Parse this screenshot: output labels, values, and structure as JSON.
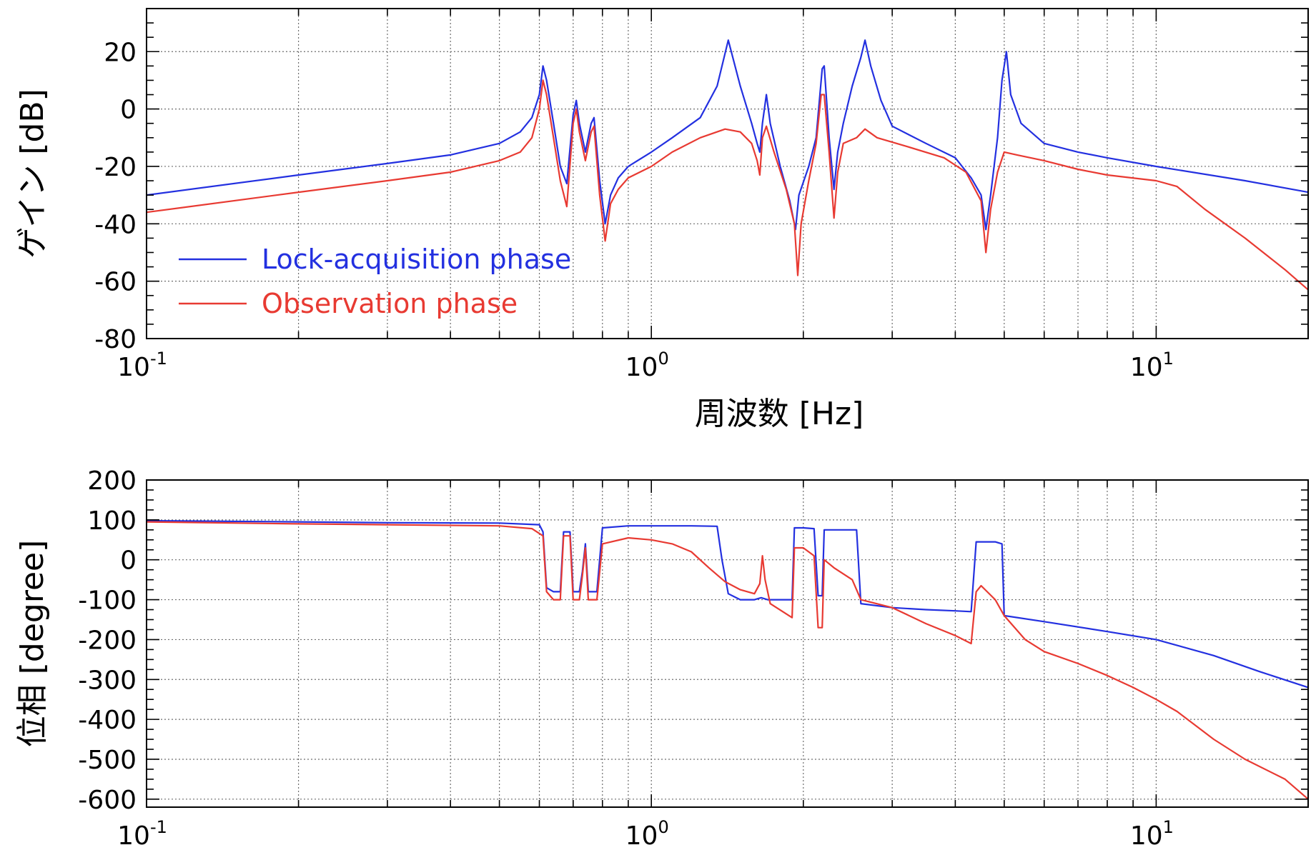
{
  "chart_data": [
    {
      "type": "line",
      "id": "gain",
      "title": "",
      "xlabel": "",
      "ylabel": "ゲイン [dB]",
      "x_scale": "log",
      "xlim": [
        0.1,
        20
      ],
      "ylim": [
        -80,
        35
      ],
      "y_ticks": [
        20,
        0,
        -20,
        -40,
        -60,
        -80
      ],
      "y_tick_labels": [
        "20",
        "0",
        "-20",
        "-40",
        "-60",
        "-80"
      ],
      "x_ticks": [
        0.1,
        1,
        10
      ],
      "x_tick_labels": [
        {
          "base": "10",
          "exp": "-1"
        },
        {
          "base": "10",
          "exp": "0"
        },
        {
          "base": "10",
          "exp": "1"
        }
      ],
      "grid": true,
      "legend_position": "lower-left",
      "series": [
        {
          "name": "Lock-acquisition phase",
          "color": "#2330e0",
          "points": [
            [
              0.1,
              -30
            ],
            [
              0.2,
              -23
            ],
            [
              0.3,
              -19
            ],
            [
              0.4,
              -16
            ],
            [
              0.5,
              -12
            ],
            [
              0.55,
              -8
            ],
            [
              0.58,
              -3
            ],
            [
              0.6,
              5
            ],
            [
              0.61,
              15
            ],
            [
              0.62,
              10
            ],
            [
              0.64,
              -5
            ],
            [
              0.66,
              -20
            ],
            [
              0.68,
              -26
            ],
            [
              0.7,
              -2
            ],
            [
              0.71,
              3
            ],
            [
              0.72,
              -5
            ],
            [
              0.74,
              -15
            ],
            [
              0.76,
              -5
            ],
            [
              0.77,
              -3
            ],
            [
              0.79,
              -25
            ],
            [
              0.81,
              -40
            ],
            [
              0.83,
              -30
            ],
            [
              0.86,
              -24
            ],
            [
              0.9,
              -20
            ],
            [
              1.0,
              -15
            ],
            [
              1.1,
              -10
            ],
            [
              1.25,
              -3
            ],
            [
              1.35,
              8
            ],
            [
              1.42,
              24
            ],
            [
              1.5,
              8
            ],
            [
              1.58,
              -5
            ],
            [
              1.62,
              -12
            ],
            [
              1.64,
              -15
            ],
            [
              1.66,
              -5
            ],
            [
              1.69,
              5
            ],
            [
              1.72,
              -5
            ],
            [
              1.8,
              -20
            ],
            [
              1.88,
              -32
            ],
            [
              1.93,
              -42
            ],
            [
              1.96,
              -30
            ],
            [
              2.05,
              -20
            ],
            [
              2.12,
              -10
            ],
            [
              2.18,
              14
            ],
            [
              2.2,
              15
            ],
            [
              2.25,
              -10
            ],
            [
              2.3,
              -28
            ],
            [
              2.34,
              -15
            ],
            [
              2.4,
              -5
            ],
            [
              2.5,
              8
            ],
            [
              2.6,
              18
            ],
            [
              2.65,
              24
            ],
            [
              2.72,
              15
            ],
            [
              2.85,
              3
            ],
            [
              3.0,
              -6
            ],
            [
              3.5,
              -12
            ],
            [
              4.0,
              -17
            ],
            [
              4.3,
              -24
            ],
            [
              4.5,
              -30
            ],
            [
              4.6,
              -42
            ],
            [
              4.7,
              -30
            ],
            [
              4.85,
              -10
            ],
            [
              4.95,
              10
            ],
            [
              5.05,
              20
            ],
            [
              5.15,
              5
            ],
            [
              5.4,
              -5
            ],
            [
              6.0,
              -12
            ],
            [
              7.0,
              -15
            ],
            [
              8.0,
              -17
            ],
            [
              10.0,
              -20
            ],
            [
              15.0,
              -25
            ],
            [
              20.0,
              -29
            ]
          ]
        },
        {
          "name": "Observation phase",
          "color": "#e83a32",
          "points": [
            [
              0.1,
              -36
            ],
            [
              0.2,
              -29
            ],
            [
              0.3,
              -25
            ],
            [
              0.4,
              -22
            ],
            [
              0.5,
              -18
            ],
            [
              0.55,
              -15
            ],
            [
              0.58,
              -10
            ],
            [
              0.6,
              0
            ],
            [
              0.61,
              10
            ],
            [
              0.62,
              5
            ],
            [
              0.64,
              -10
            ],
            [
              0.66,
              -25
            ],
            [
              0.68,
              -34
            ],
            [
              0.7,
              -5
            ],
            [
              0.71,
              0
            ],
            [
              0.72,
              -8
            ],
            [
              0.74,
              -18
            ],
            [
              0.76,
              -8
            ],
            [
              0.77,
              -6
            ],
            [
              0.79,
              -30
            ],
            [
              0.81,
              -46
            ],
            [
              0.83,
              -33
            ],
            [
              0.86,
              -28
            ],
            [
              0.9,
              -24
            ],
            [
              1.0,
              -20
            ],
            [
              1.1,
              -15
            ],
            [
              1.25,
              -10
            ],
            [
              1.4,
              -7
            ],
            [
              1.5,
              -8
            ],
            [
              1.58,
              -12
            ],
            [
              1.62,
              -18
            ],
            [
              1.64,
              -23
            ],
            [
              1.66,
              -10
            ],
            [
              1.69,
              -6
            ],
            [
              1.75,
              -15
            ],
            [
              1.85,
              -28
            ],
            [
              1.92,
              -40
            ],
            [
              1.95,
              -58
            ],
            [
              1.98,
              -40
            ],
            [
              2.05,
              -25
            ],
            [
              2.12,
              -12
            ],
            [
              2.17,
              5
            ],
            [
              2.2,
              5
            ],
            [
              2.25,
              -15
            ],
            [
              2.3,
              -38
            ],
            [
              2.34,
              -22
            ],
            [
              2.4,
              -12
            ],
            [
              2.55,
              -10
            ],
            [
              2.65,
              -7
            ],
            [
              2.8,
              -10
            ],
            [
              3.2,
              -13
            ],
            [
              3.8,
              -17
            ],
            [
              4.2,
              -22
            ],
            [
              4.5,
              -32
            ],
            [
              4.6,
              -50
            ],
            [
              4.7,
              -35
            ],
            [
              4.85,
              -22
            ],
            [
              5.0,
              -15
            ],
            [
              5.3,
              -16
            ],
            [
              6.0,
              -18
            ],
            [
              7.0,
              -21
            ],
            [
              8.0,
              -23
            ],
            [
              10.0,
              -25
            ],
            [
              11.0,
              -27
            ],
            [
              12.5,
              -35
            ],
            [
              15.0,
              -45
            ],
            [
              18.0,
              -56
            ],
            [
              20.0,
              -63
            ]
          ]
        }
      ]
    },
    {
      "type": "line",
      "id": "phase",
      "title": "",
      "xlabel": "周波数 [Hz]",
      "ylabel": "位相 [degree]",
      "x_scale": "log",
      "xlim": [
        0.1,
        20
      ],
      "ylim": [
        -620,
        200
      ],
      "y_ticks": [
        200,
        100,
        0,
        -100,
        -200,
        -300,
        -400,
        -500,
        -600
      ],
      "y_tick_labels": [
        "200",
        "100",
        "0",
        "-100",
        "-200",
        "-300",
        "-400",
        "-500",
        "-600"
      ],
      "x_ticks": [
        0.1,
        1,
        10
      ],
      "x_tick_labels": [
        {
          "base": "10",
          "exp": "-1"
        },
        {
          "base": "10",
          "exp": "0"
        },
        {
          "base": "10",
          "exp": "1"
        }
      ],
      "grid": true,
      "series": [
        {
          "name": "Lock-acquisition phase",
          "color": "#2330e0",
          "points": [
            [
              0.1,
              98
            ],
            [
              0.2,
              95
            ],
            [
              0.3,
              93
            ],
            [
              0.5,
              92
            ],
            [
              0.6,
              88
            ],
            [
              0.61,
              70
            ],
            [
              0.62,
              -70
            ],
            [
              0.64,
              -80
            ],
            [
              0.66,
              -80
            ],
            [
              0.67,
              70
            ],
            [
              0.69,
              70
            ],
            [
              0.7,
              -80
            ],
            [
              0.72,
              -80
            ],
            [
              0.73,
              -30
            ],
            [
              0.74,
              40
            ],
            [
              0.75,
              -80
            ],
            [
              0.78,
              -80
            ],
            [
              0.8,
              80
            ],
            [
              0.9,
              85
            ],
            [
              1.0,
              85
            ],
            [
              1.2,
              85
            ],
            [
              1.35,
              84
            ],
            [
              1.38,
              0
            ],
            [
              1.42,
              -85
            ],
            [
              1.5,
              -100
            ],
            [
              1.6,
              -100
            ],
            [
              1.65,
              -95
            ],
            [
              1.7,
              -100
            ],
            [
              1.9,
              -100
            ],
            [
              1.92,
              80
            ],
            [
              2.0,
              80
            ],
            [
              2.1,
              78
            ],
            [
              2.14,
              -90
            ],
            [
              2.18,
              -90
            ],
            [
              2.2,
              75
            ],
            [
              2.4,
              75
            ],
            [
              2.55,
              75
            ],
            [
              2.6,
              -110
            ],
            [
              3.0,
              -120
            ],
            [
              3.5,
              -125
            ],
            [
              4.0,
              -128
            ],
            [
              4.3,
              -130
            ],
            [
              4.4,
              45
            ],
            [
              4.8,
              45
            ],
            [
              4.95,
              40
            ],
            [
              5.0,
              -140
            ],
            [
              6.0,
              -155
            ],
            [
              8.0,
              -180
            ],
            [
              10.0,
              -200
            ],
            [
              13.0,
              -240
            ],
            [
              16.0,
              -280
            ],
            [
              20.0,
              -320
            ]
          ]
        },
        {
          "name": "Observation phase",
          "color": "#e83a32",
          "points": [
            [
              0.1,
              95
            ],
            [
              0.2,
              90
            ],
            [
              0.3,
              88
            ],
            [
              0.5,
              85
            ],
            [
              0.58,
              78
            ],
            [
              0.61,
              60
            ],
            [
              0.62,
              -80
            ],
            [
              0.64,
              -100
            ],
            [
              0.66,
              -100
            ],
            [
              0.67,
              60
            ],
            [
              0.69,
              60
            ],
            [
              0.7,
              -100
            ],
            [
              0.72,
              -100
            ],
            [
              0.73,
              -40
            ],
            [
              0.74,
              30
            ],
            [
              0.75,
              -100
            ],
            [
              0.78,
              -100
            ],
            [
              0.8,
              40
            ],
            [
              0.9,
              55
            ],
            [
              1.0,
              50
            ],
            [
              1.1,
              40
            ],
            [
              1.2,
              20
            ],
            [
              1.3,
              -20
            ],
            [
              1.4,
              -55
            ],
            [
              1.5,
              -75
            ],
            [
              1.6,
              -85
            ],
            [
              1.64,
              -60
            ],
            [
              1.66,
              10
            ],
            [
              1.68,
              -50
            ],
            [
              1.72,
              -110
            ],
            [
              1.9,
              -145
            ],
            [
              1.92,
              30
            ],
            [
              2.0,
              30
            ],
            [
              2.1,
              10
            ],
            [
              2.14,
              -170
            ],
            [
              2.18,
              -170
            ],
            [
              2.2,
              0
            ],
            [
              2.3,
              -20
            ],
            [
              2.5,
              -50
            ],
            [
              2.6,
              -100
            ],
            [
              3.0,
              -120
            ],
            [
              3.5,
              -160
            ],
            [
              4.0,
              -190
            ],
            [
              4.3,
              -210
            ],
            [
              4.4,
              -80
            ],
            [
              4.5,
              -65
            ],
            [
              4.8,
              -100
            ],
            [
              5.0,
              -140
            ],
            [
              5.5,
              -200
            ],
            [
              6.0,
              -230
            ],
            [
              7.0,
              -260
            ],
            [
              8.0,
              -290
            ],
            [
              9.0,
              -320
            ],
            [
              10.0,
              -350
            ],
            [
              11.0,
              -380
            ],
            [
              13.0,
              -450
            ],
            [
              15.0,
              -500
            ],
            [
              18.0,
              -550
            ],
            [
              20.0,
              -600
            ]
          ]
        }
      ]
    }
  ]
}
